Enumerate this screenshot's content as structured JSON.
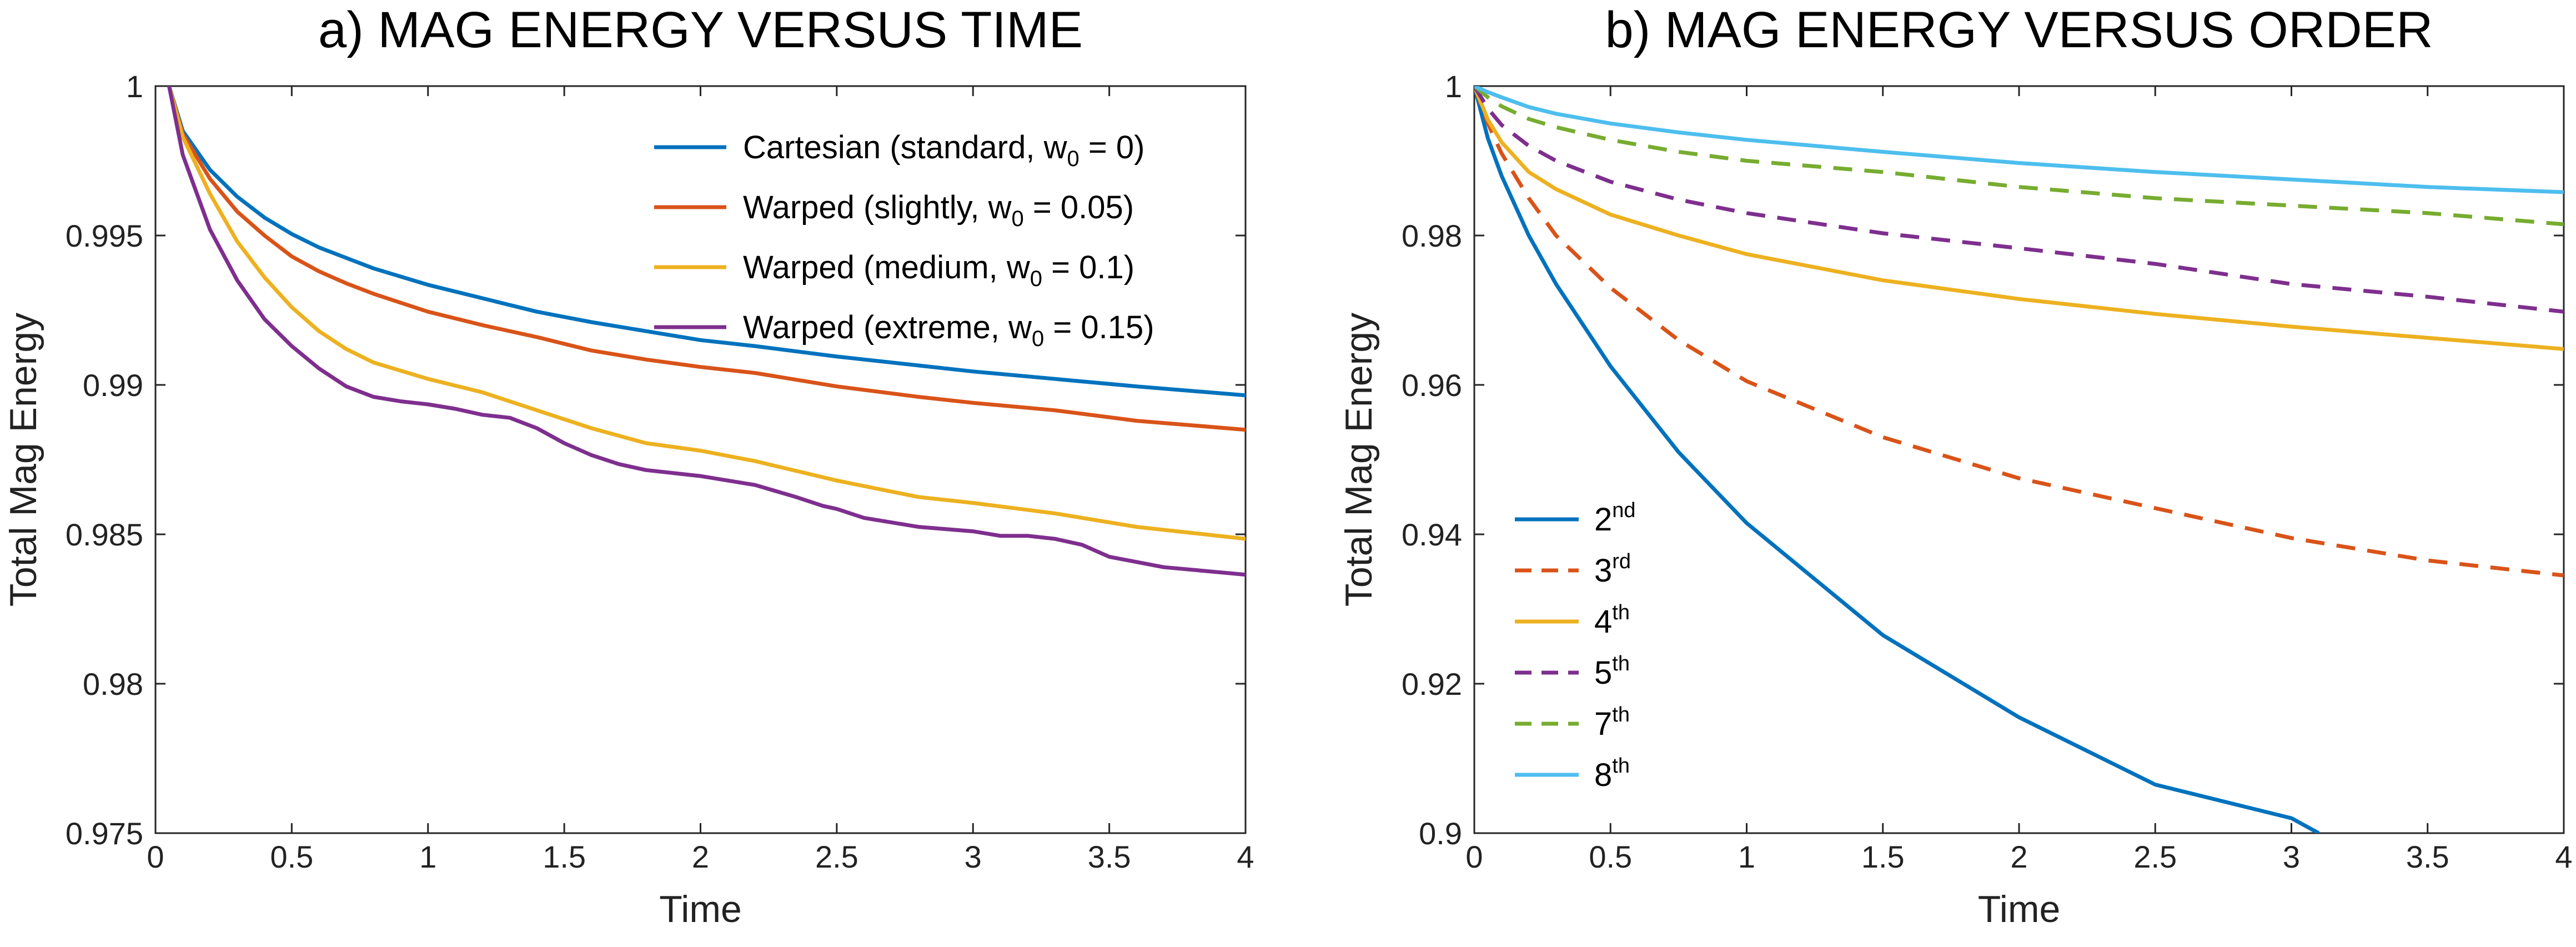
{
  "chart_data": [
    {
      "type": "line",
      "title": "a) MAG ENERGY VERSUS TIME",
      "xlabel": "Time",
      "ylabel": "Total Mag Energy",
      "xlim": [
        0,
        4
      ],
      "ylim": [
        0.975,
        1
      ],
      "xticks": [
        0,
        0.5,
        1,
        1.5,
        2,
        2.5,
        3,
        3.5,
        4
      ],
      "xtick_labels": [
        "0",
        "0.5",
        "1",
        "1.5",
        "2",
        "2.5",
        "3",
        "3.5",
        "4"
      ],
      "yticks": [
        0.975,
        0.98,
        0.985,
        0.99,
        0.995,
        1
      ],
      "ytick_labels": [
        "0.975",
        "0.98",
        "0.985",
        "0.99",
        "0.995",
        "1"
      ],
      "grid": false,
      "legend_position": "top-right",
      "series": [
        {
          "name": "Cartesian",
          "label": {
            "prefix": "Cartesian (standard, w",
            "sub": "0",
            "suffix": " = 0)"
          },
          "color": "#0072BD",
          "dash": "solid",
          "x": [
            0.05,
            0.1,
            0.2,
            0.3,
            0.4,
            0.5,
            0.6,
            0.7,
            0.8,
            1.0,
            1.2,
            1.4,
            1.6,
            1.8,
            2.0,
            2.2,
            2.5,
            2.8,
            3.0,
            3.3,
            3.6,
            4.0
          ],
          "y": [
            1.0,
            0.9985,
            0.9972,
            0.9963,
            0.9956,
            0.99505,
            0.9946,
            0.99425,
            0.9939,
            0.99335,
            0.9929,
            0.99245,
            0.9921,
            0.9918,
            0.9915,
            0.9913,
            0.99095,
            0.99065,
            0.99045,
            0.9902,
            0.98995,
            0.98965
          ]
        },
        {
          "name": "Warped (slightly)",
          "label": {
            "prefix": "Warped (slightly, w",
            "sub": "0",
            "suffix": " = 0.05)"
          },
          "color": "#D95319",
          "dash": "solid",
          "x": [
            0.05,
            0.1,
            0.2,
            0.3,
            0.4,
            0.5,
            0.6,
            0.7,
            0.8,
            1.0,
            1.2,
            1.4,
            1.6,
            1.8,
            2.0,
            2.2,
            2.5,
            2.8,
            3.0,
            3.3,
            3.6,
            4.0
          ],
          "y": [
            1.0,
            0.9984,
            0.9969,
            0.9958,
            0.995,
            0.9943,
            0.9938,
            0.9934,
            0.99305,
            0.99245,
            0.992,
            0.9916,
            0.99115,
            0.99085,
            0.9906,
            0.9904,
            0.98995,
            0.9896,
            0.9894,
            0.98915,
            0.9888,
            0.9885
          ]
        },
        {
          "name": "Warped (medium)",
          "label": {
            "prefix": "Warped (medium, w",
            "sub": "0",
            "suffix": " = 0.1)"
          },
          "color": "#EDB120",
          "dash": "solid",
          "x": [
            0.05,
            0.1,
            0.2,
            0.3,
            0.4,
            0.5,
            0.6,
            0.7,
            0.8,
            1.0,
            1.2,
            1.4,
            1.6,
            1.8,
            2.0,
            2.2,
            2.5,
            2.8,
            3.0,
            3.3,
            3.6,
            4.0
          ],
          "y": [
            1.0,
            0.9983,
            0.9964,
            0.9948,
            0.9936,
            0.9926,
            0.9918,
            0.9912,
            0.99075,
            0.9902,
            0.98975,
            0.98915,
            0.98855,
            0.98805,
            0.9878,
            0.98745,
            0.9868,
            0.98625,
            0.98605,
            0.9857,
            0.98525,
            0.98485
          ]
        },
        {
          "name": "Warped (extreme)",
          "label": {
            "prefix": "Warped (extreme, w",
            "sub": "0",
            "suffix": " = 0.15)"
          },
          "color": "#7E2F8E",
          "dash": "solid",
          "x": [
            0.05,
            0.1,
            0.2,
            0.3,
            0.4,
            0.5,
            0.6,
            0.7,
            0.8,
            0.9,
            1.0,
            1.1,
            1.2,
            1.3,
            1.4,
            1.5,
            1.6,
            1.7,
            1.8,
            2.0,
            2.2,
            2.35,
            2.45,
            2.5,
            2.6,
            2.8,
            3.0,
            3.1,
            3.2,
            3.3,
            3.4,
            3.5,
            3.7,
            4.0
          ],
          "y": [
            1.0,
            0.9977,
            0.9952,
            0.9935,
            0.9922,
            0.9913,
            0.99055,
            0.98995,
            0.9896,
            0.98945,
            0.98935,
            0.9892,
            0.989,
            0.9889,
            0.98855,
            0.98805,
            0.98765,
            0.98735,
            0.98715,
            0.98695,
            0.98665,
            0.98625,
            0.98595,
            0.98585,
            0.98555,
            0.98525,
            0.9851,
            0.98495,
            0.98495,
            0.98485,
            0.98465,
            0.98425,
            0.9839,
            0.98365
          ]
        }
      ]
    },
    {
      "type": "line",
      "title": "b) MAG ENERGY VERSUS ORDER",
      "xlabel": "Time",
      "ylabel": "Total Mag Energy",
      "xlim": [
        0,
        4
      ],
      "ylim": [
        0.9,
        1
      ],
      "xticks": [
        0,
        0.5,
        1,
        1.5,
        2,
        2.5,
        3,
        3.5,
        4
      ],
      "xtick_labels": [
        "0",
        "0.5",
        "1",
        "1.5",
        "2",
        "2.5",
        "3",
        "3.5",
        "4"
      ],
      "yticks": [
        0.9,
        0.92,
        0.94,
        0.96,
        0.98,
        1
      ],
      "ytick_labels": [
        "0.9",
        "0.92",
        "0.94",
        "0.96",
        "0.98",
        "1"
      ],
      "grid": false,
      "legend_position": "bottom-left",
      "series": [
        {
          "name": "2nd",
          "label": {
            "prefix": "2",
            "sup": "nd"
          },
          "color": "#0072BD",
          "dash": "solid",
          "x": [
            0,
            0.05,
            0.1,
            0.2,
            0.3,
            0.5,
            0.75,
            1.0,
            1.5,
            2.0,
            2.5,
            3.0,
            3.1
          ],
          "y": [
            1.0,
            0.993,
            0.988,
            0.98,
            0.9735,
            0.9625,
            0.951,
            0.9415,
            0.9265,
            0.9155,
            0.9065,
            0.902,
            0.9
          ]
        },
        {
          "name": "3rd",
          "label": {
            "prefix": "3",
            "sup": "rd"
          },
          "color": "#D95319",
          "dash": "dashed",
          "x": [
            0,
            0.05,
            0.1,
            0.2,
            0.3,
            0.5,
            0.75,
            1.0,
            1.5,
            2.0,
            2.5,
            3.0,
            3.5,
            4.0
          ],
          "y": [
            1.0,
            0.995,
            0.991,
            0.985,
            0.98,
            0.973,
            0.966,
            0.9605,
            0.953,
            0.9475,
            0.9435,
            0.9395,
            0.9365,
            0.9345
          ]
        },
        {
          "name": "4th",
          "label": {
            "prefix": "4",
            "sup": "th"
          },
          "color": "#EDB120",
          "dash": "solid",
          "x": [
            0,
            0.05,
            0.1,
            0.2,
            0.3,
            0.5,
            0.75,
            1.0,
            1.5,
            2.0,
            2.5,
            3.0,
            3.5,
            4.0
          ],
          "y": [
            1.0,
            0.9955,
            0.9925,
            0.9885,
            0.9862,
            0.9828,
            0.98,
            0.9775,
            0.974,
            0.9715,
            0.9695,
            0.9678,
            0.9663,
            0.9648
          ]
        },
        {
          "name": "5th",
          "label": {
            "prefix": "5",
            "sup": "th"
          },
          "color": "#7E2F8E",
          "dash": "dashed",
          "x": [
            0,
            0.05,
            0.1,
            0.2,
            0.3,
            0.5,
            0.75,
            1.0,
            1.5,
            2.0,
            2.5,
            3.0,
            3.5,
            4.0
          ],
          "y": [
            1.0,
            0.997,
            0.9948,
            0.992,
            0.99,
            0.9872,
            0.9848,
            0.983,
            0.9803,
            0.9783,
            0.9762,
            0.9735,
            0.9718,
            0.9698
          ]
        },
        {
          "name": "7th",
          "label": {
            "prefix": "7",
            "sup": "th"
          },
          "color": "#77AC30",
          "dash": "dashed",
          "x": [
            0,
            0.05,
            0.1,
            0.2,
            0.3,
            0.5,
            0.75,
            1.0,
            1.5,
            2.0,
            2.5,
            3.0,
            3.5,
            4.0
          ],
          "y": [
            1.0,
            0.9985,
            0.9973,
            0.9956,
            0.9945,
            0.9928,
            0.9912,
            0.99,
            0.9885,
            0.9865,
            0.985,
            0.984,
            0.983,
            0.9815
          ]
        },
        {
          "name": "8th",
          "label": {
            "prefix": "8",
            "sup": "th"
          },
          "color": "#4DBEEE",
          "dash": "solid",
          "x": [
            0,
            0.05,
            0.1,
            0.2,
            0.3,
            0.5,
            0.75,
            1.0,
            1.5,
            2.0,
            2.5,
            3.0,
            3.5,
            4.0
          ],
          "y": [
            1.0,
            0.9992,
            0.9985,
            0.9972,
            0.9963,
            0.995,
            0.9938,
            0.9928,
            0.9912,
            0.9897,
            0.9885,
            0.9875,
            0.9865,
            0.9858
          ]
        }
      ]
    }
  ]
}
